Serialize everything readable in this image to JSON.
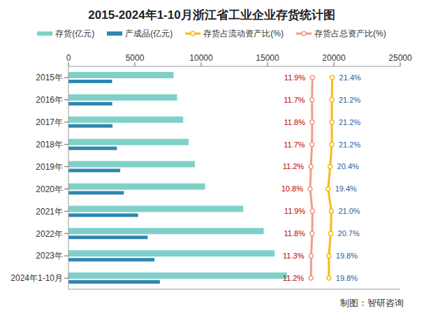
{
  "chart_data": {
    "type": "bar",
    "title": "2015-2024年1-10月浙江省工业企业存货统计图",
    "orientation": "horizontal",
    "categories": [
      "2015年",
      "2016年",
      "2017年",
      "2018年",
      "2019年",
      "2020年",
      "2021年",
      "2022年",
      "2023年",
      "2024年1-10月"
    ],
    "series": [
      {
        "name": "存货(亿元)",
        "type": "bar",
        "color": "#7fd0c8",
        "values": [
          7920,
          8180,
          8640,
          9050,
          9520,
          10290,
          13170,
          14710,
          15530,
          16460
        ]
      },
      {
        "name": "产成品(亿元)",
        "type": "bar",
        "color": "#2f86b0",
        "values": [
          3290,
          3300,
          3320,
          3650,
          3900,
          4170,
          5250,
          5970,
          6480,
          6890
        ]
      },
      {
        "name": "存货占流动资产比(%)",
        "type": "line",
        "axis": "y2",
        "color": "#f7bb16",
        "marker": "circle",
        "data_labels": true,
        "values": [
          21.4,
          21.2,
          21.2,
          21.2,
          20.4,
          19.4,
          21.0,
          20.7,
          19.8,
          19.8
        ],
        "value_labels": [
          "21.4%",
          "21.2%",
          "21.2%",
          "21.2%",
          "20.4%",
          "19.4%",
          "21.0%",
          "20.7%",
          "19.8%",
          "19.8%"
        ]
      },
      {
        "name": "存货占总资产比(%)",
        "type": "line",
        "axis": "y2",
        "color": "#f29b86",
        "marker": "circle",
        "data_labels": true,
        "values": [
          11.9,
          11.7,
          11.8,
          11.7,
          11.2,
          10.8,
          11.9,
          11.8,
          11.3,
          11.2
        ],
        "value_labels": [
          "11.9%",
          "11.7%",
          "11.8%",
          "11.7%",
          "11.2%",
          "10.8%",
          "11.9%",
          "11.8%",
          "11.3%",
          "11.2%"
        ]
      }
    ],
    "xlim": [
      0,
      25000
    ],
    "xticks": [
      0,
      5000,
      10000,
      15000,
      20000,
      25000
    ],
    "y2lim": [
      -105,
      54
    ],
    "y2ticks": [],
    "grid": false,
    "legend": "top",
    "annotations": [
      "制图：智研咨询"
    ]
  }
}
